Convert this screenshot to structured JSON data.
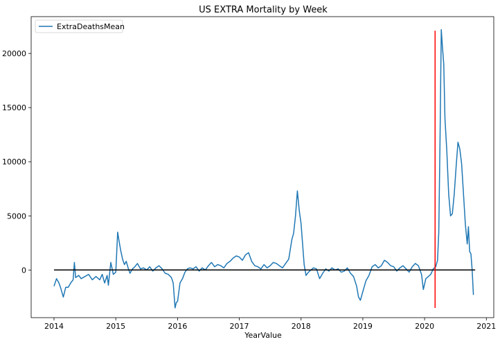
{
  "chart_data": {
    "type": "line",
    "title": "US EXTRA Mortality by Week",
    "xlabel": "YearValue",
    "ylabel": "",
    "xlim": [
      2013.63,
      2021.12
    ],
    "ylim": [
      -4400,
      23400
    ],
    "x_ticks": [
      {
        "value": 2014,
        "label": "2014"
      },
      {
        "value": 2015,
        "label": "2015"
      },
      {
        "value": 2016,
        "label": "2016"
      },
      {
        "value": 2017,
        "label": "2017"
      },
      {
        "value": 2018,
        "label": "2018"
      },
      {
        "value": 2019,
        "label": "2019"
      },
      {
        "value": 2020,
        "label": "2020"
      },
      {
        "value": 2021,
        "label": "2021"
      }
    ],
    "y_ticks": [
      {
        "value": 0,
        "label": "0"
      },
      {
        "value": 5000,
        "label": "5000"
      },
      {
        "value": 10000,
        "label": "10000"
      },
      {
        "value": 15000,
        "label": "15000"
      },
      {
        "value": 20000,
        "label": "20000"
      }
    ],
    "grid": false,
    "legend_position": "top-left",
    "series": [
      {
        "name": "ExtraDeathsMean",
        "color": "#1f77b4",
        "points": [
          [
            2014.0,
            -1500
          ],
          [
            2014.04,
            -800
          ],
          [
            2014.08,
            -1200
          ],
          [
            2014.11,
            -1700
          ],
          [
            2014.15,
            -2500
          ],
          [
            2014.19,
            -1600
          ],
          [
            2014.23,
            -1600
          ],
          [
            2014.27,
            -1200
          ],
          [
            2014.31,
            -900
          ],
          [
            2014.33,
            700
          ],
          [
            2014.35,
            -700
          ],
          [
            2014.4,
            -500
          ],
          [
            2014.44,
            -800
          ],
          [
            2014.5,
            -600
          ],
          [
            2014.56,
            -400
          ],
          [
            2014.62,
            -900
          ],
          [
            2014.68,
            -600
          ],
          [
            2014.74,
            -900
          ],
          [
            2014.78,
            -400
          ],
          [
            2014.82,
            -1200
          ],
          [
            2014.86,
            -500
          ],
          [
            2014.88,
            -1400
          ],
          [
            2014.92,
            700
          ],
          [
            2014.96,
            -400
          ],
          [
            2015.0,
            -200
          ],
          [
            2015.03,
            3500
          ],
          [
            2015.05,
            2800
          ],
          [
            2015.08,
            1800
          ],
          [
            2015.11,
            1000
          ],
          [
            2015.14,
            500
          ],
          [
            2015.17,
            800
          ],
          [
            2015.2,
            200
          ],
          [
            2015.23,
            -300
          ],
          [
            2015.27,
            100
          ],
          [
            2015.31,
            300
          ],
          [
            2015.35,
            600
          ],
          [
            2015.4,
            100
          ],
          [
            2015.45,
            200
          ],
          [
            2015.5,
            0
          ],
          [
            2015.55,
            300
          ],
          [
            2015.6,
            -100
          ],
          [
            2015.65,
            200
          ],
          [
            2015.7,
            400
          ],
          [
            2015.75,
            100
          ],
          [
            2015.8,
            -300
          ],
          [
            2015.85,
            -400
          ],
          [
            2015.9,
            -700
          ],
          [
            2015.93,
            -1200
          ],
          [
            2015.96,
            -3500
          ],
          [
            2015.98,
            -3000
          ],
          [
            2016.0,
            -2900
          ],
          [
            2016.04,
            -1200
          ],
          [
            2016.08,
            -800
          ],
          [
            2016.12,
            -200
          ],
          [
            2016.16,
            100
          ],
          [
            2016.2,
            200
          ],
          [
            2016.25,
            100
          ],
          [
            2016.3,
            300
          ],
          [
            2016.35,
            -100
          ],
          [
            2016.4,
            200
          ],
          [
            2016.45,
            0
          ],
          [
            2016.5,
            400
          ],
          [
            2016.55,
            700
          ],
          [
            2016.6,
            300
          ],
          [
            2016.65,
            500
          ],
          [
            2016.7,
            400
          ],
          [
            2016.75,
            200
          ],
          [
            2016.8,
            600
          ],
          [
            2016.85,
            800
          ],
          [
            2016.9,
            1100
          ],
          [
            2016.95,
            1300
          ],
          [
            2017.0,
            1200
          ],
          [
            2017.05,
            900
          ],
          [
            2017.1,
            1400
          ],
          [
            2017.15,
            1600
          ],
          [
            2017.2,
            800
          ],
          [
            2017.25,
            400
          ],
          [
            2017.3,
            300
          ],
          [
            2017.35,
            100
          ],
          [
            2017.4,
            500
          ],
          [
            2017.45,
            200
          ],
          [
            2017.5,
            400
          ],
          [
            2017.55,
            700
          ],
          [
            2017.6,
            600
          ],
          [
            2017.65,
            400
          ],
          [
            2017.7,
            200
          ],
          [
            2017.75,
            600
          ],
          [
            2017.8,
            1000
          ],
          [
            2017.85,
            2800
          ],
          [
            2017.88,
            3400
          ],
          [
            2017.91,
            5000
          ],
          [
            2017.94,
            7300
          ],
          [
            2017.97,
            5500
          ],
          [
            2018.0,
            4300
          ],
          [
            2018.05,
            500
          ],
          [
            2018.08,
            -500
          ],
          [
            2018.12,
            -200
          ],
          [
            2018.16,
            0
          ],
          [
            2018.2,
            200
          ],
          [
            2018.25,
            100
          ],
          [
            2018.3,
            -800
          ],
          [
            2018.35,
            -300
          ],
          [
            2018.4,
            100
          ],
          [
            2018.45,
            -100
          ],
          [
            2018.5,
            200
          ],
          [
            2018.55,
            0
          ],
          [
            2018.6,
            100
          ],
          [
            2018.65,
            -200
          ],
          [
            2018.7,
            -100
          ],
          [
            2018.75,
            200
          ],
          [
            2018.8,
            -300
          ],
          [
            2018.85,
            -600
          ],
          [
            2018.9,
            -1500
          ],
          [
            2018.93,
            -2500
          ],
          [
            2018.96,
            -2800
          ],
          [
            2019.0,
            -2000
          ],
          [
            2019.05,
            -1000
          ],
          [
            2019.1,
            -500
          ],
          [
            2019.15,
            300
          ],
          [
            2019.2,
            500
          ],
          [
            2019.25,
            200
          ],
          [
            2019.3,
            400
          ],
          [
            2019.35,
            900
          ],
          [
            2019.4,
            700
          ],
          [
            2019.45,
            400
          ],
          [
            2019.5,
            300
          ],
          [
            2019.55,
            -100
          ],
          [
            2019.6,
            200
          ],
          [
            2019.65,
            400
          ],
          [
            2019.7,
            100
          ],
          [
            2019.75,
            -200
          ],
          [
            2019.8,
            300
          ],
          [
            2019.85,
            600
          ],
          [
            2019.9,
            400
          ],
          [
            2019.95,
            -400
          ],
          [
            2019.98,
            -1800
          ],
          [
            2020.02,
            -800
          ],
          [
            2020.06,
            -600
          ],
          [
            2020.1,
            -400
          ],
          [
            2020.14,
            100
          ],
          [
            2020.18,
            300
          ],
          [
            2020.21,
            900
          ],
          [
            2020.23,
            3500
          ],
          [
            2020.25,
            12000
          ],
          [
            2020.27,
            22200
          ],
          [
            2020.29,
            20500
          ],
          [
            2020.31,
            19000
          ],
          [
            2020.33,
            14000
          ],
          [
            2020.36,
            11000
          ],
          [
            2020.39,
            7000
          ],
          [
            2020.42,
            5000
          ],
          [
            2020.45,
            5200
          ],
          [
            2020.48,
            7000
          ],
          [
            2020.51,
            9500
          ],
          [
            2020.54,
            11800
          ],
          [
            2020.57,
            11200
          ],
          [
            2020.6,
            9800
          ],
          [
            2020.63,
            7000
          ],
          [
            2020.66,
            4200
          ],
          [
            2020.69,
            2400
          ],
          [
            2020.71,
            4000
          ],
          [
            2020.73,
            1700
          ],
          [
            2020.75,
            1500
          ],
          [
            2020.77,
            0
          ],
          [
            2020.79,
            -2300
          ]
        ]
      },
      {
        "name": "",
        "color": "#000000",
        "points": [
          [
            2014.0,
            0
          ],
          [
            2020.82,
            0
          ]
        ]
      }
    ],
    "vlines": [
      {
        "x": 2020.17,
        "y_from": -3500,
        "y_to": 22100,
        "color": "#ff0000"
      }
    ]
  }
}
